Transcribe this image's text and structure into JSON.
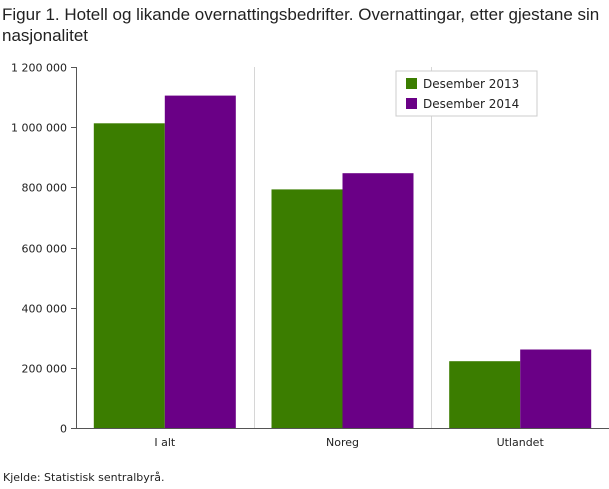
{
  "title": "Figur 1. Hotell og likande overnattingsbedrifter. Overnattingar, etter gjestane sin nasjonalitet",
  "source": "Kjelde: Statistisk sentralbyrå.",
  "chart_data": {
    "type": "bar",
    "title": "Figur 1. Hotell og likande overnattingsbedrifter. Overnattingar, etter gjestane sin nasjonalitet",
    "xlabel": "",
    "ylabel": "",
    "categories": [
      "I alt",
      "Noreg",
      "Utlandet"
    ],
    "series": [
      {
        "name": "Desember 2013",
        "color": "#3b7d00",
        "values": [
          1013000,
          793000,
          222000
        ]
      },
      {
        "name": "Desember 2014",
        "color": "#6a0086",
        "values": [
          1105000,
          847000,
          261000
        ]
      }
    ],
    "ylim": [
      0,
      1200000
    ],
    "yticks": [
      0,
      200000,
      400000,
      600000,
      800000,
      1000000,
      1200000
    ],
    "ytick_labels": [
      "0",
      "200 000",
      "400 000",
      "600 000",
      "800 000",
      "1 000 000",
      "1 200 000"
    ],
    "grid": "vertical category separators",
    "legend_position": "top-right"
  }
}
